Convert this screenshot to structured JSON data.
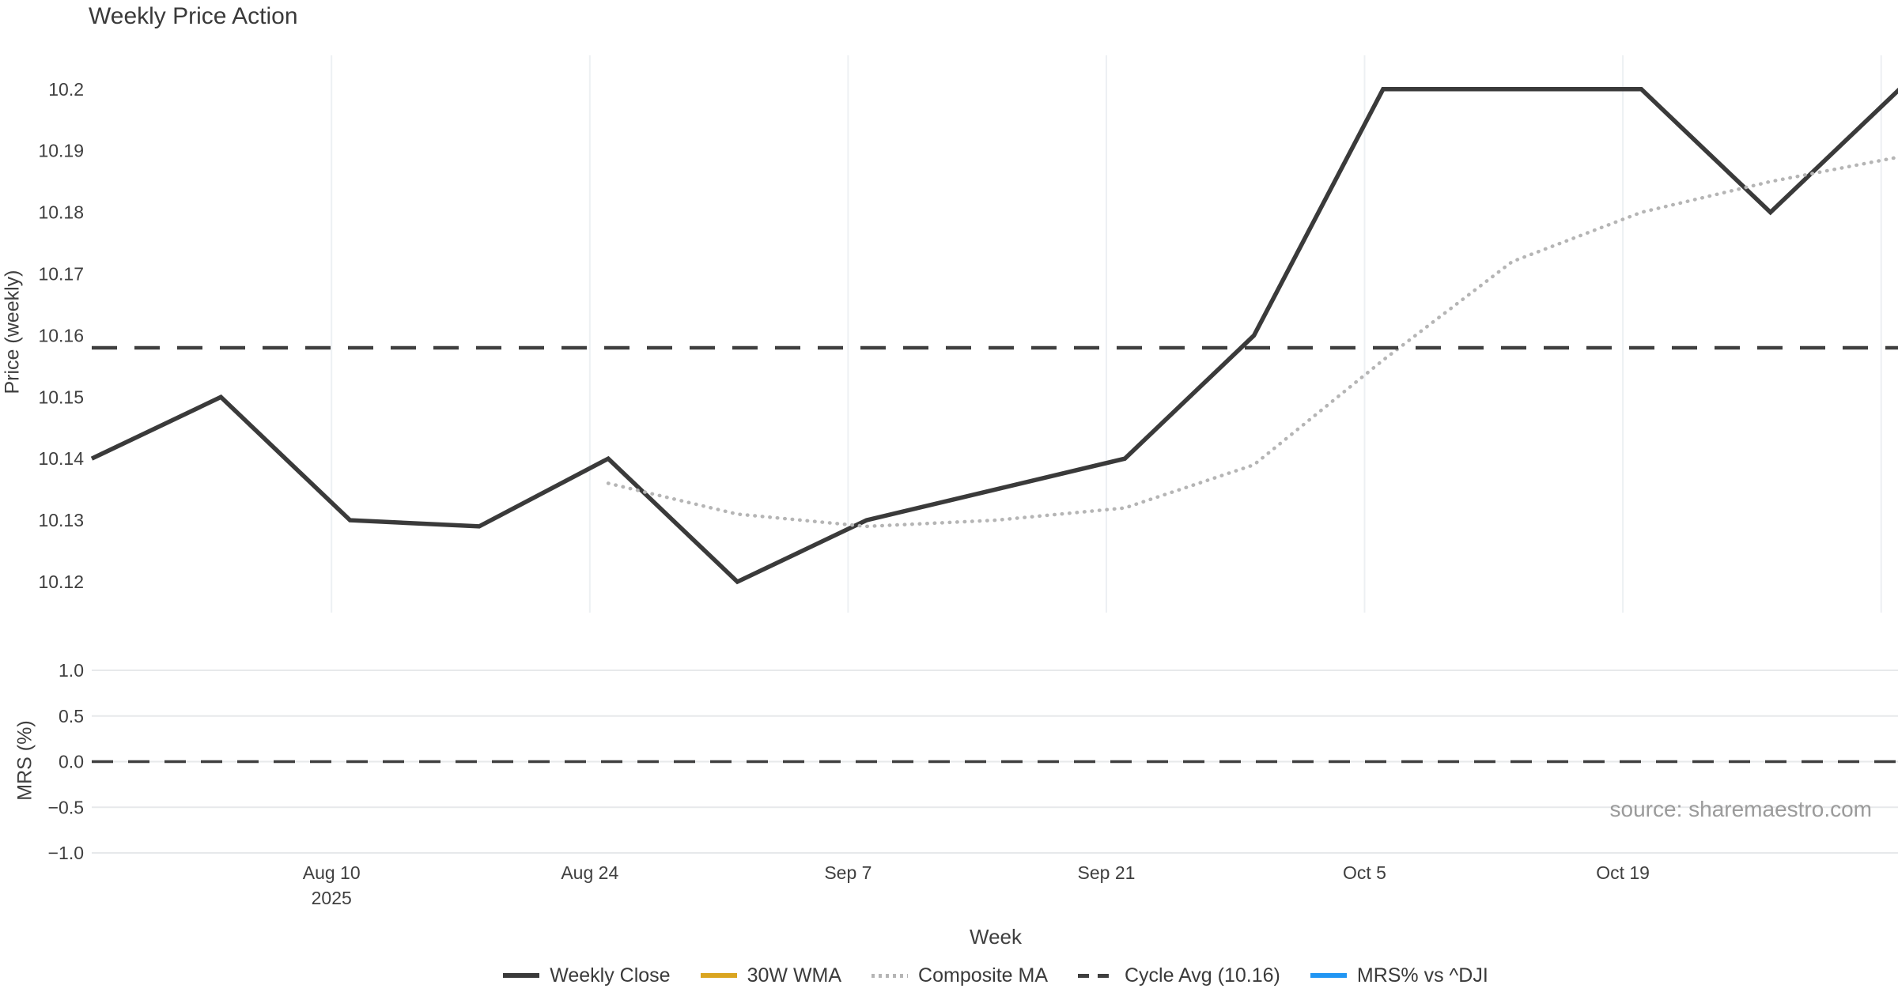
{
  "title": "Weekly Price Action",
  "source_note": "source: sharemaestro.com",
  "colors": {
    "close": "#3a3a3a",
    "wma": "#DAA520",
    "composite": "#b5b5b5",
    "cycle": "#3f3f3f",
    "mrs": "#2196F3",
    "grid_vertical": "#edf0f3",
    "grid_horizontal": "#e7e9eb",
    "tick_text": "#3f3f3f",
    "title_text": "#3a3a3a",
    "source_text": "#9b9b9b"
  },
  "legend": {
    "items": [
      {
        "label": "Weekly Close",
        "key": "weekly-close",
        "color_key": "close",
        "line": "solid"
      },
      {
        "label": "30W WMA",
        "key": "wma",
        "color_key": "wma",
        "line": "solid"
      },
      {
        "label": "Composite MA",
        "key": "composite",
        "color_key": "composite",
        "line": "dotted"
      },
      {
        "label": "Cycle Avg (10.16)",
        "key": "cycle-avg",
        "color_key": "cycle",
        "line": "dashed"
      },
      {
        "label": "MRS% vs ^DJI",
        "key": "mrs",
        "color_key": "mrs",
        "line": "solid"
      }
    ]
  },
  "chart_data": [
    {
      "type": "line",
      "panel": "price",
      "title": "Weekly Price Action",
      "xlabel": "Week",
      "ylabel": "Price (weekly)",
      "x_days": [
        0,
        7,
        14,
        21,
        28,
        35,
        42,
        49,
        56,
        63,
        70,
        77,
        84,
        91,
        98
      ],
      "x_total_days": 98,
      "series": [
        {
          "name": "Weekly Close",
          "line": "solid",
          "color_key": "close",
          "width": 5.5,
          "values": [
            10.14,
            10.15,
            10.13,
            10.129,
            10.14,
            10.12,
            10.13,
            10.135,
            10.14,
            10.16,
            10.2,
            10.2,
            10.2,
            10.18,
            10.2
          ]
        },
        {
          "name": "30W WMA",
          "line": "solid",
          "color_key": "wma",
          "width": 5.5,
          "values": []
        },
        {
          "name": "Composite MA",
          "line": "dotted",
          "color_key": "composite",
          "width": 4.5,
          "values": [
            null,
            null,
            null,
            null,
            10.136,
            10.131,
            10.129,
            10.13,
            10.132,
            10.139,
            10.156,
            10.172,
            10.18,
            10.185,
            10.189
          ]
        },
        {
          "name": "Cycle Avg (10.16)",
          "line": "dashed",
          "color_key": "cycle",
          "width": 4.5,
          "constant": 10.158,
          "labeled_value": 10.16
        }
      ],
      "yticks": [
        {
          "label": "10.12",
          "value": 10.12
        },
        {
          "label": "10.13",
          "value": 10.13
        },
        {
          "label": "10.14",
          "value": 10.14
        },
        {
          "label": "10.15",
          "value": 10.15
        },
        {
          "label": "10.16",
          "value": 10.16
        },
        {
          "label": "10.17",
          "value": 10.17
        },
        {
          "label": "10.18",
          "value": 10.18
        },
        {
          "label": "10.19",
          "value": 10.19
        },
        {
          "label": "10.2",
          "value": 10.2
        }
      ],
      "ylim": [
        10.115,
        10.2055
      ],
      "xticks": [
        {
          "label": "Aug 10",
          "label2": "2025",
          "day": 13
        },
        {
          "label": "Aug 24",
          "label2": "",
          "day": 27
        },
        {
          "label": "Sep 7",
          "label2": "",
          "day": 41
        },
        {
          "label": "Sep 21",
          "label2": "",
          "day": 55
        },
        {
          "label": "Oct 5",
          "label2": "",
          "day": 69
        },
        {
          "label": "Oct 19",
          "label2": "",
          "day": 83
        },
        {
          "label": "",
          "label2": "",
          "day": 97
        }
      ],
      "grid": "vertical-only"
    },
    {
      "type": "line",
      "panel": "mrs",
      "ylabel": "MRS (%)",
      "series": [
        {
          "name": "MRS% vs ^DJI",
          "line": "solid",
          "color_key": "mrs",
          "width": 4,
          "values": []
        },
        {
          "name": "zero-line",
          "line": "dashed",
          "color_key": "cycle",
          "width": 3.5,
          "constant": 0.0
        }
      ],
      "yticks": [
        {
          "label": "−1.0",
          "value": -1.0
        },
        {
          "label": "−0.5",
          "value": -0.5
        },
        {
          "label": "0.0",
          "value": 0.0
        },
        {
          "label": "0.5",
          "value": 0.5
        },
        {
          "label": "1.0",
          "value": 1.0
        }
      ],
      "ylim": [
        -1.095,
        1.156
      ],
      "grid": "horizontal-only"
    }
  ]
}
